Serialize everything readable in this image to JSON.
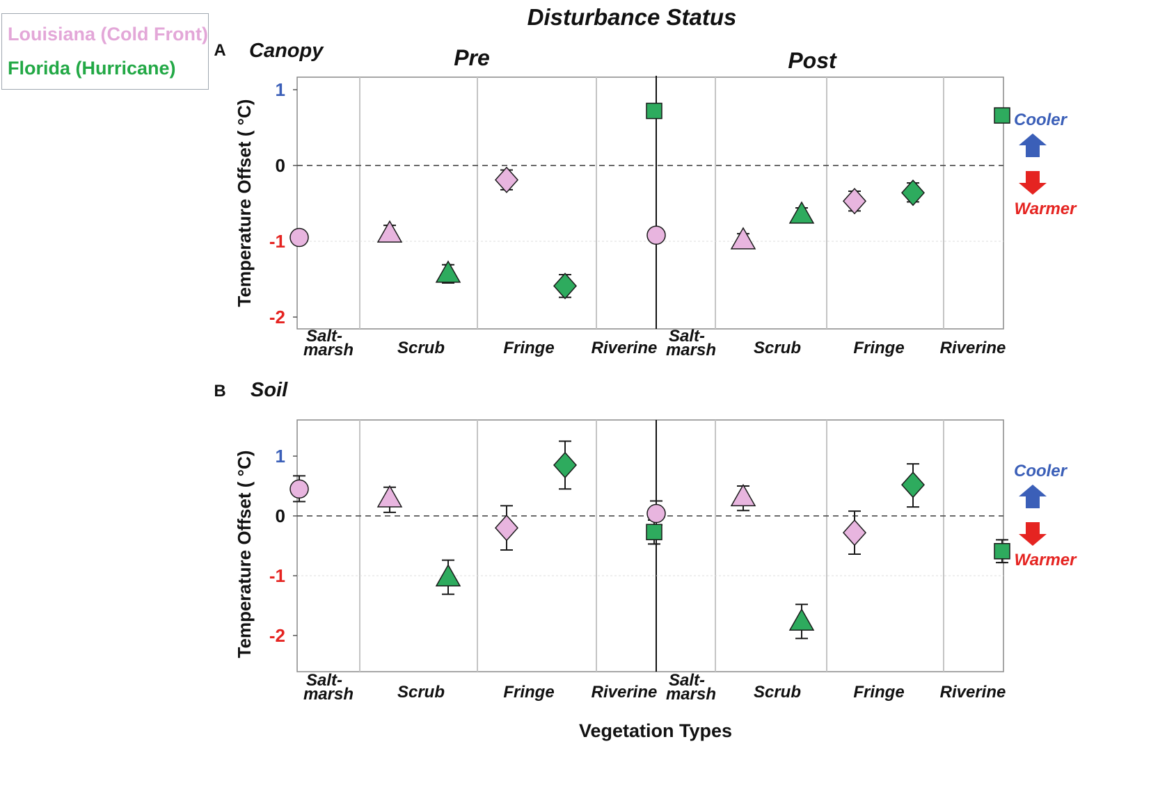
{
  "legend": {
    "entries": [
      {
        "label": "Louisiana (Cold Front)",
        "color": "#e3a7d8"
      },
      {
        "label": "Florida (Hurricane)",
        "color": "#22a845"
      }
    ]
  },
  "figure": {
    "title": "Disturbance Status",
    "xlabel": "Vegetation Types",
    "ylabel": "Temperature Offset ( °C)",
    "groups": [
      "Pre",
      "Post"
    ],
    "indicator": {
      "up_label": "Cooler",
      "down_label": "Warmer",
      "up_color": "#3b5fb8",
      "down_color": "#e52421"
    }
  },
  "colors": {
    "louisiana_fill": "#e8b5df",
    "florida_fill": "#2eab5e",
    "tick_positive": "#3b5fb8",
    "tick_negative": "#e52421",
    "tick_zero": "#111111"
  },
  "chart_data": [
    {
      "type": "scatter",
      "panel_letter": "A",
      "title": "Canopy",
      "xlabel": "Vegetation Types",
      "ylabel": "Temperature Offset ( °C)",
      "ylim": [
        -2.15,
        1.1
      ],
      "yticks": [
        "1",
        "0",
        "-1",
        "-2"
      ],
      "grid": "horizontal gridline at -1, dashed reference line at 0",
      "groups": [
        "Pre",
        "Post"
      ],
      "categories": [
        "Salt-\nmarsh",
        "Scrub",
        "Fringe",
        "Riverine"
      ],
      "category_labels": [
        "Salt-\nmarsh",
        "Scrub",
        "Fringe",
        "Riverine",
        "Salt-\nmarsh",
        "Scrub",
        "Fringe",
        "Riverine"
      ],
      "series": [
        {
          "name": "Louisiana (Cold Front)",
          "site": "la",
          "points": [
            {
              "group": "Pre",
              "category": "Saltmarsh",
              "shape": "circle",
              "value": -0.95,
              "low": -1.04,
              "high": -0.86
            },
            {
              "group": "Pre",
              "category": "Scrub",
              "shape": "triangle",
              "value": -0.9,
              "low": -0.97,
              "high": -0.79
            },
            {
              "group": "Pre",
              "category": "Fringe",
              "shape": "diamond",
              "value": -0.19,
              "low": -0.32,
              "high": -0.06
            },
            {
              "group": "Post",
              "category": "Saltmarsh",
              "shape": "circle",
              "value": -0.92,
              "low": -0.99,
              "high": -0.85
            },
            {
              "group": "Post",
              "category": "Scrub",
              "shape": "triangle",
              "value": -0.99,
              "low": -1.08,
              "high": -0.9
            },
            {
              "group": "Post",
              "category": "Fringe",
              "shape": "diamond",
              "value": -0.47,
              "low": -0.6,
              "high": -0.34
            }
          ]
        },
        {
          "name": "Florida (Hurricane)",
          "site": "fl",
          "points": [
            {
              "group": "Pre",
              "category": "Scrub",
              "shape": "triangle",
              "value": -1.43,
              "low": -1.55,
              "high": -1.31
            },
            {
              "group": "Pre",
              "category": "Fringe",
              "shape": "diamond",
              "value": -1.59,
              "low": -1.74,
              "high": -1.44
            },
            {
              "group": "Pre",
              "category": "Riverine",
              "shape": "square",
              "value": 0.72,
              "low": 0.64,
              "high": 0.81
            },
            {
              "group": "Post",
              "category": "Scrub",
              "shape": "triangle",
              "value": -0.65,
              "low": -0.75,
              "high": -0.56
            },
            {
              "group": "Post",
              "category": "Fringe",
              "shape": "diamond",
              "value": -0.36,
              "low": -0.48,
              "high": -0.23
            },
            {
              "group": "Post",
              "category": "Riverine",
              "shape": "square",
              "value": 0.66,
              "low": 0.6,
              "high": 0.72
            }
          ]
        }
      ]
    },
    {
      "type": "scatter",
      "panel_letter": "B",
      "title": "Soil",
      "xlabel": "Vegetation Types",
      "ylabel": "Temperature Offset ( °C)",
      "ylim": [
        -2.6,
        1.6
      ],
      "yticks": [
        "1",
        "0",
        "-1",
        "-2"
      ],
      "grid": "horizontal gridline at -1, dashed reference line at 0",
      "groups": [
        "Pre",
        "Post"
      ],
      "categories": [
        "Salt-\nmarsh",
        "Scrub",
        "Fringe",
        "Riverine"
      ],
      "category_labels": [
        "Salt-\nmarsh",
        "Scrub",
        "Fringe",
        "Riverine",
        "Salt-\nmarsh",
        "Scrub",
        "Fringe",
        "Riverine"
      ],
      "series": [
        {
          "name": "Louisiana (Cold Front)",
          "site": "la",
          "points": [
            {
              "group": "Pre",
              "category": "Saltmarsh",
              "shape": "circle",
              "value": 0.45,
              "low": 0.24,
              "high": 0.67
            },
            {
              "group": "Pre",
              "category": "Scrub",
              "shape": "triangle",
              "value": 0.29,
              "low": 0.06,
              "high": 0.48
            },
            {
              "group": "Pre",
              "category": "Fringe",
              "shape": "diamond",
              "value": -0.2,
              "low": -0.57,
              "high": 0.17
            },
            {
              "group": "Post",
              "category": "Saltmarsh",
              "shape": "circle",
              "value": 0.04,
              "low": -0.15,
              "high": 0.25
            },
            {
              "group": "Post",
              "category": "Scrub",
              "shape": "triangle",
              "value": 0.31,
              "low": 0.09,
              "high": 0.5
            },
            {
              "group": "Post",
              "category": "Fringe",
              "shape": "diamond",
              "value": -0.28,
              "low": -0.64,
              "high": 0.08
            }
          ]
        },
        {
          "name": "Florida (Hurricane)",
          "site": "fl",
          "points": [
            {
              "group": "Pre",
              "category": "Scrub",
              "shape": "triangle",
              "value": -1.03,
              "low": -1.31,
              "high": -0.74
            },
            {
              "group": "Pre",
              "category": "Fringe",
              "shape": "diamond",
              "value": 0.85,
              "low": 0.45,
              "high": 1.25
            },
            {
              "group": "Pre",
              "category": "Riverine",
              "shape": "square",
              "value": -0.27,
              "low": -0.47,
              "high": -0.07
            },
            {
              "group": "Post",
              "category": "Scrub",
              "shape": "triangle",
              "value": -1.77,
              "low": -2.05,
              "high": -1.48
            },
            {
              "group": "Post",
              "category": "Fringe",
              "shape": "diamond",
              "value": 0.52,
              "low": 0.15,
              "high": 0.87
            },
            {
              "group": "Post",
              "category": "Riverine",
              "shape": "square",
              "value": -0.59,
              "low": -0.78,
              "high": -0.4
            }
          ]
        }
      ]
    }
  ]
}
